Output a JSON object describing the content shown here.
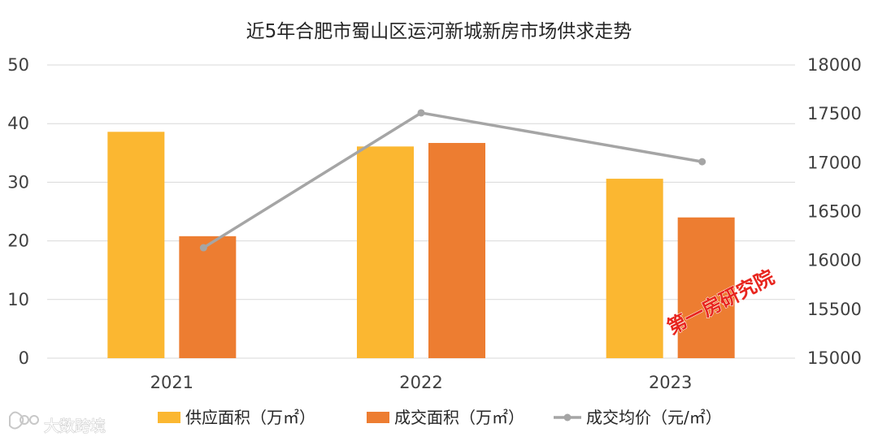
{
  "chart_data": {
    "type": "bar",
    "title": "近5年合肥市蜀山区运河新城新房市场供求走势",
    "categories": [
      "2021",
      "2022",
      "2023"
    ],
    "series": [
      {
        "name": "供应面积（万㎡）",
        "kind": "bar",
        "axis": "left",
        "color": "#FBB731",
        "values": [
          38.6,
          36.1,
          30.6
        ]
      },
      {
        "name": "成交面积（万㎡）",
        "kind": "bar",
        "axis": "left",
        "color": "#ED7D31",
        "values": [
          20.8,
          36.7,
          24.0
        ]
      },
      {
        "name": "成交均价（元/㎡）",
        "kind": "line",
        "axis": "right",
        "color": "#A5A5A5",
        "values": [
          16130,
          17510,
          17010
        ]
      }
    ],
    "y_left": {
      "min": 0,
      "max": 50,
      "ticks": [
        0,
        10,
        20,
        30,
        40,
        50
      ]
    },
    "y_right": {
      "min": 15000,
      "max": 18000,
      "ticks": [
        15000,
        15500,
        16000,
        16500,
        17000,
        17500,
        18000
      ]
    },
    "grid": true,
    "legend_position": "bottom"
  },
  "watermark": {
    "text": "第一房研究院",
    "color": "#e8261f"
  },
  "brand": {
    "text": "大数跨境",
    "icon": "brand-logo-icon"
  }
}
